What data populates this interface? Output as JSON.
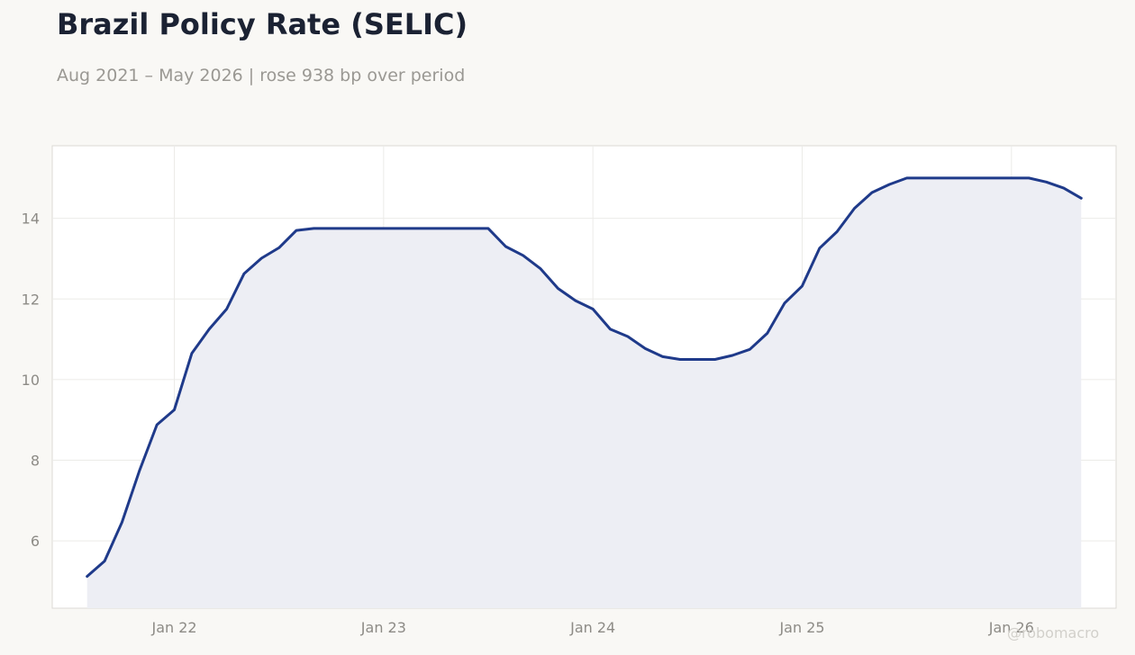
{
  "title": "Brazil Policy Rate (SELIC)",
  "subtitle": "Aug 2021 – May 2026 | rose 938 bp over period",
  "watermark": "@robomacro",
  "colors": {
    "line": "#1f3a8a",
    "area_fill": "#edeef4",
    "grid": "#ecebe8",
    "plot_background": "#ffffff",
    "page_background": "#f9f8f5"
  },
  "chart_data": {
    "type": "area",
    "title": "Brazil Policy Rate (SELIC)",
    "subtitle": "Aug 2021 – May 2026 | rose 938 bp over period",
    "xlabel": "",
    "ylabel": "",
    "grid": true,
    "legend": "none",
    "x_ticks": [
      "Jan 22",
      "Jan 23",
      "Jan 24",
      "Jan 25",
      "Jan 26"
    ],
    "y_ticks": [
      6,
      8,
      10,
      12,
      14
    ],
    "ylim": [
      4.33,
      15.8
    ],
    "xlim": [
      "2021-06",
      "2026-07"
    ],
    "series": [
      {
        "x": [
          "2021-08",
          "2021-09",
          "2021-10",
          "2021-11",
          "2021-12",
          "2022-01",
          "2022-02",
          "2022-03",
          "2022-04",
          "2022-05",
          "2022-06",
          "2022-07",
          "2022-08",
          "2022-09",
          "2022-10",
          "2022-11",
          "2022-12",
          "2023-01",
          "2023-02",
          "2023-03",
          "2023-04",
          "2023-05",
          "2023-06",
          "2023-07",
          "2023-08",
          "2023-09",
          "2023-10",
          "2023-11",
          "2023-12",
          "2024-01",
          "2024-02",
          "2024-03",
          "2024-04",
          "2024-05",
          "2024-06",
          "2024-07",
          "2024-08",
          "2024-09",
          "2024-10",
          "2024-11",
          "2024-12",
          "2025-01",
          "2025-02",
          "2025-03",
          "2025-04",
          "2025-05",
          "2025-06",
          "2025-07",
          "2025-08",
          "2025-09",
          "2025-10",
          "2025-11",
          "2025-12",
          "2026-01",
          "2026-02",
          "2026-03",
          "2026-04",
          "2026-05"
        ],
        "values": [
          5.12,
          5.5,
          6.46,
          7.74,
          8.88,
          9.25,
          10.65,
          11.25,
          11.75,
          12.63,
          13.01,
          13.27,
          13.7,
          13.75,
          13.75,
          13.75,
          13.75,
          13.75,
          13.75,
          13.75,
          13.75,
          13.75,
          13.75,
          13.75,
          13.3,
          13.08,
          12.75,
          12.26,
          11.96,
          11.75,
          11.25,
          11.07,
          10.77,
          10.57,
          10.5,
          10.5,
          10.5,
          10.6,
          10.75,
          11.15,
          11.9,
          12.32,
          13.26,
          13.67,
          14.25,
          14.64,
          14.84,
          15.0,
          15.0,
          15.0,
          15.0,
          15.0,
          15.0,
          15.0,
          15.0,
          14.9,
          14.75,
          14.5
        ]
      }
    ]
  }
}
